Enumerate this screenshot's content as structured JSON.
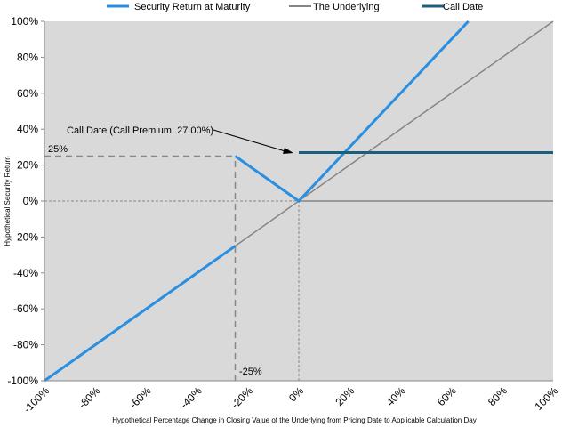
{
  "chart_data": {
    "type": "line",
    "xlabel": "Hypothetical Percentage Change in Closing Value of the Underlying from Pricing Date to Applicable Calculation Day",
    "ylabel": "Hypothetical Security Return",
    "xlim": [
      -100,
      100
    ],
    "ylim": [
      -100,
      100
    ],
    "x_ticks": [
      -100,
      -80,
      -60,
      -40,
      -20,
      0,
      20,
      40,
      60,
      80,
      100
    ],
    "x_tick_labels": [
      "-100%",
      "-80%",
      "-60%",
      "-40%",
      "-20%",
      "0%",
      "20%",
      "40%",
      "60%",
      "80%",
      "100%"
    ],
    "y_ticks": [
      100,
      80,
      60,
      40,
      20,
      0,
      -20,
      -40,
      -60,
      -80,
      -100
    ],
    "y_tick_labels": [
      "100%",
      "80%",
      "60%",
      "40%",
      "20%",
      "0%",
      "-20%",
      "-40%",
      "-60%",
      "-80%",
      "-100%"
    ],
    "grid": false,
    "background": "#d9d9d9",
    "legend_position": "top",
    "series": [
      {
        "name": "Security Return at Maturity",
        "color": "#2a8fe0",
        "segments": [
          [
            [
              -100,
              -100
            ],
            [
              -25,
              -25
            ]
          ],
          [
            [
              -25,
              25
            ],
            [
              0,
              0
            ],
            [
              66.67,
              100
            ]
          ]
        ]
      },
      {
        "name": "The Underlying",
        "color": "#858585",
        "segments": [
          [
            [
              -100,
              -100
            ],
            [
              100,
              100
            ]
          ],
          [
            [
              0,
              0
            ],
            [
              100,
              0
            ]
          ]
        ]
      },
      {
        "name": "Call Date",
        "color": "#1c5f7c",
        "segments": [
          [
            [
              0,
              27
            ],
            [
              100,
              27
            ]
          ]
        ]
      }
    ],
    "reference_lines": [
      {
        "type": "h",
        "y": 25,
        "x_from": -100,
        "x_to": -25
      },
      {
        "type": "v",
        "x": -25,
        "y_from": -100,
        "y_to": 25
      },
      {
        "type": "h",
        "y": 0,
        "x_from": -100,
        "x_to": 0
      },
      {
        "type": "v",
        "x": 0,
        "y_from": -100,
        "y_to": 0
      }
    ],
    "annotations": {
      "call_premium": "Call Date (Call Premium: 27.00%)",
      "y_marker": "25%",
      "x_marker": "-25%"
    }
  }
}
